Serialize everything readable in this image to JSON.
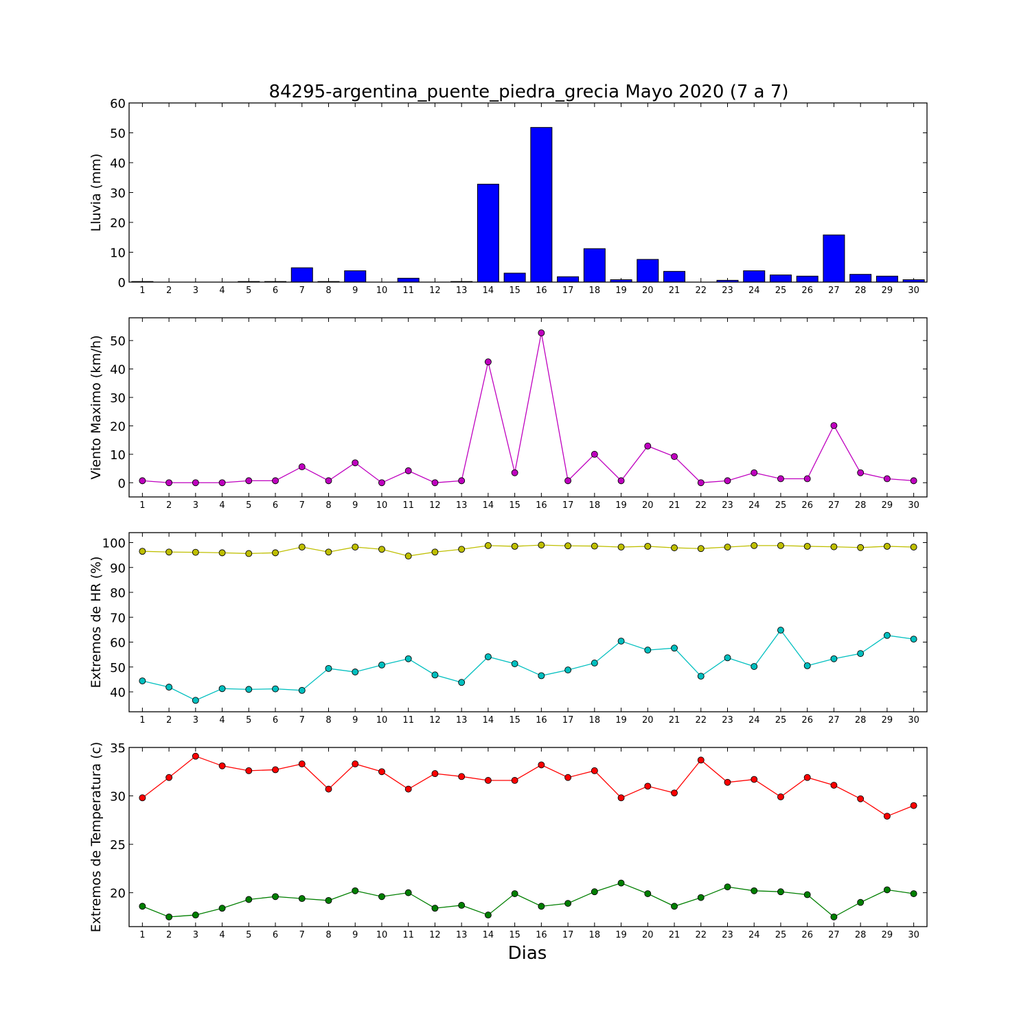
{
  "title": "84295-argentina_puente_piedra_grecia Mayo 2020  (7 a 7)",
  "xlabel": "Dias",
  "colors": {
    "rain": "#0000ff",
    "wind": "#bf00bf",
    "hr_max": "#bfbf00",
    "hr_min": "#00bfbf",
    "temp_max": "#ff0000",
    "temp_min": "#007f00"
  },
  "chart_data": [
    {
      "type": "bar",
      "ylabel": "Lluvia (mm)",
      "ylim": [
        0,
        60
      ],
      "yticks": [
        0,
        10,
        20,
        30,
        40,
        50,
        60
      ],
      "categories": [
        "1",
        "2",
        "3",
        "4",
        "5",
        "6",
        "7",
        "8",
        "9",
        "10",
        "11",
        "12",
        "13",
        "14",
        "15",
        "16",
        "17",
        "18",
        "19",
        "20",
        "21",
        "22",
        "23",
        "24",
        "25",
        "26",
        "27",
        "28",
        "29",
        "30"
      ],
      "values": [
        0.2,
        0.0,
        0.0,
        0.0,
        0.2,
        0.2,
        4.8,
        0.2,
        3.8,
        0.0,
        1.3,
        0.0,
        0.2,
        32.8,
        3.0,
        51.8,
        1.8,
        11.2,
        0.8,
        7.6,
        3.6,
        0.0,
        0.6,
        3.8,
        2.4,
        2.0,
        15.8,
        2.6,
        2.0,
        0.8
      ],
      "grid": false
    },
    {
      "type": "line",
      "ylabel": "Viento Maximo (km/h)",
      "ylim": [
        -5,
        58
      ],
      "yticks": [
        0,
        10,
        20,
        30,
        40,
        50
      ],
      "x": [
        1,
        2,
        3,
        4,
        5,
        6,
        7,
        8,
        9,
        10,
        11,
        12,
        13,
        14,
        15,
        16,
        17,
        18,
        19,
        20,
        21,
        22,
        23,
        24,
        25,
        26,
        27,
        28,
        29,
        30
      ],
      "series": [
        {
          "values": [
            0.7,
            0.0,
            0.0,
            0.0,
            0.7,
            0.7,
            5.6,
            0.7,
            7.0,
            0.0,
            4.2,
            0.0,
            0.7,
            42.5,
            3.5,
            52.7,
            0.7,
            10.0,
            0.7,
            12.9,
            9.2,
            0.0,
            0.7,
            3.5,
            1.4,
            1.4,
            20.1,
            3.5,
            1.4,
            0.7
          ]
        }
      ],
      "grid": false
    },
    {
      "type": "line",
      "ylabel": "Extremos de HR (%)",
      "ylim": [
        32,
        104
      ],
      "yticks": [
        40,
        50,
        60,
        70,
        80,
        90,
        100
      ],
      "x": [
        1,
        2,
        3,
        4,
        5,
        6,
        7,
        8,
        9,
        10,
        11,
        12,
        13,
        14,
        15,
        16,
        17,
        18,
        19,
        20,
        21,
        22,
        23,
        24,
        25,
        26,
        27,
        28,
        29,
        30
      ],
      "series": [
        {
          "values": [
            96.5,
            96.2,
            96.1,
            95.9,
            95.6,
            95.9,
            98.2,
            96.2,
            98.2,
            97.3,
            94.6,
            96.2,
            97.3,
            98.8,
            98.5,
            99.0,
            98.7,
            98.6,
            98.2,
            98.5,
            97.9,
            97.6,
            98.2,
            98.8,
            98.8,
            98.5,
            98.3,
            98.0,
            98.5,
            98.2
          ]
        },
        {
          "values": [
            44.4,
            41.9,
            36.6,
            41.3,
            41.0,
            41.2,
            40.6,
            49.4,
            48.0,
            50.8,
            53.3,
            46.8,
            43.8,
            54.1,
            51.3,
            46.5,
            48.8,
            51.6,
            60.4,
            56.8,
            57.6,
            46.3,
            53.7,
            50.2,
            64.8,
            50.5,
            53.3,
            55.4,
            62.7,
            61.2
          ]
        }
      ],
      "grid": false
    },
    {
      "type": "line",
      "ylabel": "Extremos de Temperatura (c)",
      "ylim": [
        16.5,
        35
      ],
      "yticks": [
        20,
        25,
        30,
        35
      ],
      "x": [
        1,
        2,
        3,
        4,
        5,
        6,
        7,
        8,
        9,
        10,
        11,
        12,
        13,
        14,
        15,
        16,
        17,
        18,
        19,
        20,
        21,
        22,
        23,
        24,
        25,
        26,
        27,
        28,
        29,
        30
      ],
      "series": [
        {
          "values": [
            29.8,
            31.9,
            34.1,
            33.1,
            32.6,
            32.7,
            33.3,
            30.7,
            33.3,
            32.5,
            30.7,
            32.3,
            32.0,
            31.6,
            31.6,
            33.2,
            31.9,
            32.6,
            29.8,
            31.0,
            30.3,
            33.7,
            31.4,
            31.7,
            29.9,
            31.9,
            31.1,
            29.7,
            27.9,
            29.0
          ]
        },
        {
          "values": [
            18.6,
            17.5,
            17.7,
            18.4,
            19.3,
            19.6,
            19.4,
            19.2,
            20.2,
            19.6,
            20.0,
            18.4,
            18.7,
            17.7,
            19.9,
            18.6,
            18.9,
            20.1,
            21.0,
            19.9,
            18.6,
            19.5,
            20.6,
            20.2,
            20.1,
            19.8,
            17.5,
            19.0,
            20.3,
            19.9
          ]
        }
      ],
      "grid": false
    }
  ]
}
